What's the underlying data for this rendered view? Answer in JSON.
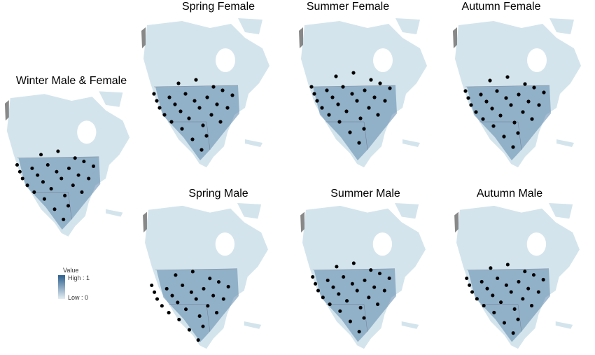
{
  "panels": [
    {
      "title": "Winter Male & Female"
    },
    {
      "title": "Spring Female"
    },
    {
      "title": "Summer Female"
    },
    {
      "title": "Autumn Female"
    },
    {
      "title": "Spring Male"
    },
    {
      "title": "Summer Male"
    },
    {
      "title": "Autumn Male"
    }
  ],
  "legend": {
    "title": "Value",
    "high": "High : 1",
    "low": "Low : 0"
  }
}
